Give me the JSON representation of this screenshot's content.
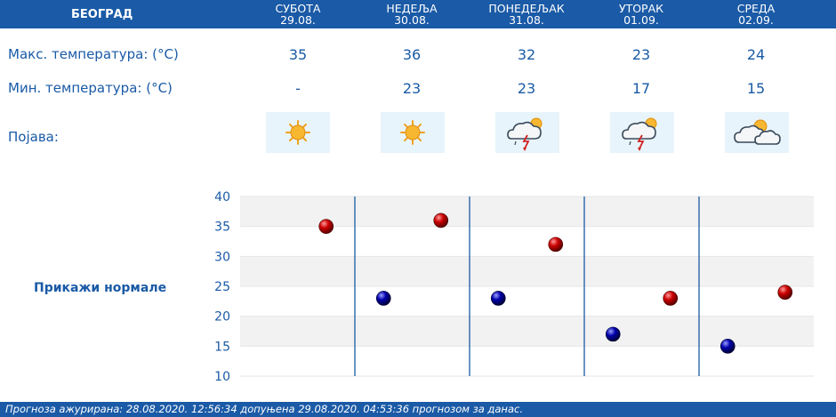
{
  "header": {
    "city": "БЕОГРАД",
    "days": [
      {
        "name": "СУБОТА",
        "date": "29.08."
      },
      {
        "name": "НЕДЕЉА",
        "date": "30.08."
      },
      {
        "name": "ПОНЕДЕЉАК",
        "date": "31.08."
      },
      {
        "name": "УТОРАК",
        "date": "01.09."
      },
      {
        "name": "СРЕДА",
        "date": "02.09."
      }
    ]
  },
  "rows": {
    "max_label": "Макс. температура: (°C)",
    "min_label": "Мин. температура: (°C)",
    "phen_label": "Појава:",
    "max_values": [
      "35",
      "36",
      "32",
      "23",
      "24"
    ],
    "min_values": [
      "-",
      "23",
      "23",
      "17",
      "15"
    ],
    "icons": [
      "sun-icon",
      "sun-icon",
      "thunderstorm-icon",
      "thunderstorm-icon",
      "partly-cloudy-icon"
    ]
  },
  "show_normals": "Прикажи нормале",
  "footer": {
    "text": "Прогноза ажурирана:  28.08.2020. 12:56:34 допуњена 29.08.2020. 04:53:36 прогнозом за данас."
  },
  "colors": {
    "header_bg": "#1a5aa6",
    "max_dot": "#cc0000",
    "min_dot": "#0000aa",
    "grid_band": "#f2f2f2"
  },
  "chart_data": {
    "type": "scatter",
    "categories": [
      "29.08.",
      "30.08.",
      "31.08.",
      "01.09.",
      "02.09."
    ],
    "series": [
      {
        "values": [
          35,
          36,
          32,
          23,
          24
        ]
      },
      {
        "values": [
          null,
          23,
          23,
          17,
          15
        ]
      }
    ],
    "ylim": [
      10,
      40
    ],
    "yticks": [
      "10",
      "15",
      "20",
      "25",
      "30",
      "35",
      "40"
    ],
    "grid": true
  }
}
